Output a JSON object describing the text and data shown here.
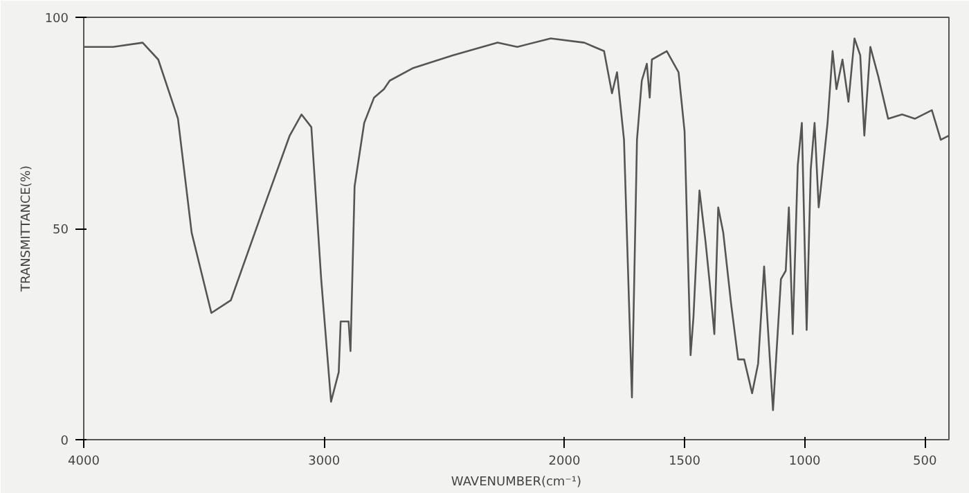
{
  "chart_data": {
    "type": "line",
    "xlabel": "WAVENUMBER(cm⁻¹)",
    "ylabel": "TRANSMITTANCE(%)",
    "xlim": [
      4000,
      400
    ],
    "xticks": [
      4000,
      3000,
      2000,
      1500,
      1000,
      500
    ],
    "ylim": [
      0,
      100
    ],
    "yticks": [
      0,
      50,
      100
    ],
    "grid": false,
    "marker": "none",
    "line_style": "solid",
    "series": [
      {
        "color": "#555555",
        "x": [
          4000,
          3878,
          3755,
          3690,
          3608,
          3551,
          3469,
          3388,
          3257,
          3143,
          3094,
          3053,
          3012,
          2971,
          2939,
          2931,
          2898,
          2890,
          2873,
          2833,
          2792,
          2751,
          2727,
          2629,
          2465,
          2278,
          2196,
          2057,
          1917,
          1876,
          1835,
          1802,
          1781,
          1752,
          1719,
          1698,
          1678,
          1657,
          1645,
          1636,
          1574,
          1525,
          1500,
          1475,
          1463,
          1438,
          1413,
          1397,
          1376,
          1360,
          1339,
          1306,
          1277,
          1252,
          1219,
          1194,
          1169,
          1132,
          1099,
          1079,
          1066,
          1050,
          1029,
          1012,
          992,
          975,
          959,
          942,
          934,
          905,
          884,
          868,
          843,
          818,
          793,
          769,
          752,
          727,
          694,
          653,
          595,
          541,
          471,
          434,
          400
        ],
        "values": [
          93,
          93,
          94,
          90,
          76,
          49,
          30,
          33,
          54,
          72,
          77,
          74,
          38,
          9,
          16,
          28,
          28,
          21,
          60,
          75,
          81,
          83,
          85,
          88,
          91,
          94,
          93,
          95,
          94,
          93,
          92,
          82,
          87,
          71,
          10,
          71,
          85,
          89,
          81,
          90,
          92,
          87,
          73,
          20,
          29,
          59,
          47,
          38,
          25,
          55,
          49,
          32,
          19,
          19,
          11,
          18,
          41,
          7,
          38,
          40,
          55,
          25,
          65,
          75,
          26,
          64,
          75,
          55,
          59,
          75,
          92,
          83,
          90,
          80,
          95,
          91,
          72,
          93,
          86,
          76,
          77,
          76,
          78,
          71,
          72
        ]
      }
    ]
  }
}
